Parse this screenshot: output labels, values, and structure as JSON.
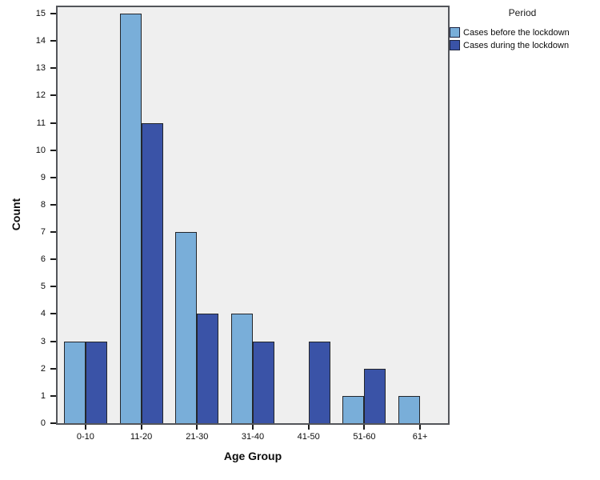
{
  "chart_data": {
    "type": "bar",
    "variant": "clustered",
    "title": "",
    "categories": [
      "0-10",
      "11-20",
      "21-30",
      "31-40",
      "41-50",
      "51-60",
      "61+"
    ],
    "series": [
      {
        "name": "Cases before the lockdown",
        "color": "#79aed9",
        "values": [
          3,
          15,
          7,
          4,
          0,
          1,
          1
        ]
      },
      {
        "name": "Cases during the lockdown",
        "color": "#3a53a7",
        "values": [
          3,
          11,
          4,
          3,
          3,
          2,
          0
        ]
      }
    ],
    "xlabel": "Age Group",
    "ylabel": "Count",
    "ylim": [
      0,
      15
    ],
    "yticks": [
      "0",
      "1",
      "2",
      "3",
      "4",
      "5",
      "6",
      "7",
      "8",
      "9",
      "10",
      "11",
      "12",
      "13",
      "14",
      "15"
    ],
    "legend_title": "Period",
    "legend_position": "top-right",
    "grid": false,
    "plot_background": "#efefef"
  }
}
